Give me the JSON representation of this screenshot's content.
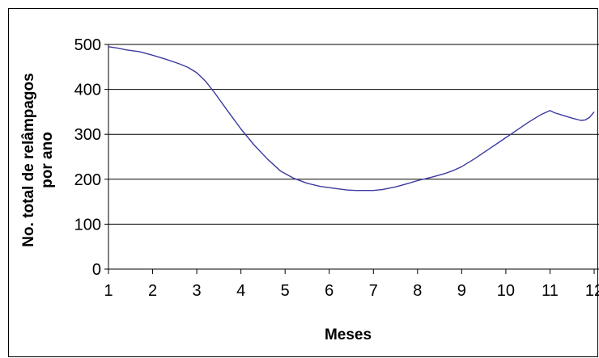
{
  "chart_data": {
    "type": "line",
    "title": "",
    "xlabel": "Meses",
    "ylabel_lines": [
      "No. total de relâmpagos",
      "por ano"
    ],
    "xlim": [
      1,
      12
    ],
    "ylim": [
      0,
      500
    ],
    "x_ticks": [
      "1",
      "2",
      "3",
      "4",
      "5",
      "6",
      "7",
      "8",
      "9",
      "10",
      "11",
      "12"
    ],
    "y_ticks": [
      "0",
      "100",
      "200",
      "300",
      "400",
      "500"
    ],
    "grid": "horizontal",
    "series": [
      {
        "color": "#3a3aa0",
        "x": [
          1,
          1.2,
          1.4,
          1.7,
          2,
          2.3,
          2.6,
          2.8,
          3,
          3.2,
          3.4,
          3.7,
          4,
          4.3,
          4.6,
          4.9,
          5.2,
          5.5,
          5.8,
          6.1,
          6.4,
          6.6,
          7,
          7.2,
          7.5,
          7.8,
          8,
          8.3,
          8.6,
          8.8,
          9,
          9.3,
          9.6,
          9.9,
          10.2,
          10.5,
          10.8,
          11,
          11.1,
          11.3,
          11.5,
          11.7,
          11.8,
          11.9,
          12
        ],
        "y": [
          495,
          492,
          488,
          484,
          476,
          467,
          457,
          449,
          437,
          418,
          393,
          352,
          312,
          276,
          245,
          218,
          202,
          191,
          184,
          180,
          176,
          175,
          175,
          177,
          183,
          191,
          197,
          204,
          212,
          219,
          228,
          246,
          266,
          286,
          306,
          326,
          344,
          353,
          348,
          342,
          336,
          331,
          332,
          338,
          350
        ]
      }
    ]
  }
}
